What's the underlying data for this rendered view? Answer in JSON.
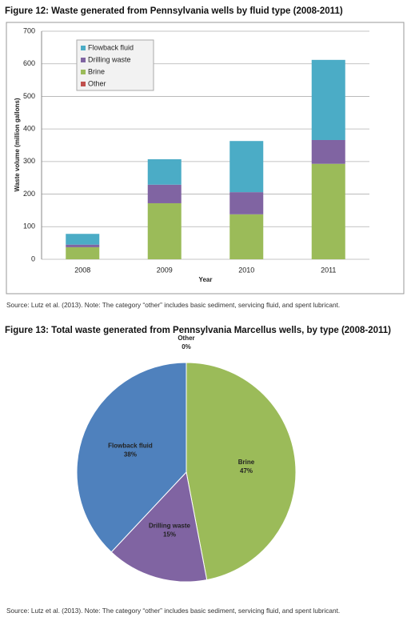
{
  "chart_data": [
    {
      "type": "stacked-bar",
      "title": "Figure 12: Waste generated from Pennsylvania wells by fluid type (2008-2011)",
      "xlabel": "Year",
      "ylabel": "Waste volume (million gallons)",
      "categories": [
        "2008",
        "2009",
        "2010",
        "2011"
      ],
      "series": [
        {
          "name": "Flowback fluid",
          "color": "#4bacc6",
          "values": [
            33,
            78,
            157,
            246
          ]
        },
        {
          "name": "Drilling waste",
          "color": "#8064a2",
          "values": [
            8,
            57,
            68,
            73
          ]
        },
        {
          "name": "Brine",
          "color": "#9bbb59",
          "values": [
            37,
            172,
            138,
            293
          ]
        },
        {
          "name": "Other",
          "color": "#c0504d",
          "values": [
            0,
            0,
            0,
            0
          ]
        }
      ],
      "ylim": [
        0,
        700
      ],
      "yticks": [
        0,
        100,
        200,
        300,
        400,
        500,
        600,
        700
      ],
      "grid": true,
      "legend": "top-left",
      "note": "Source: Lutz et al. (2013). Note: The category “other” includes basic sediment, servicing fluid, and spent lubricant."
    },
    {
      "type": "pie",
      "title": "Figure 13: Total waste generated from Pennsylvania Marcellus wells, by type (2008-2011)",
      "categories": [
        "Other",
        "Brine",
        "Drilling waste",
        "Flowback fluid"
      ],
      "values": [
        0,
        47,
        15,
        38
      ],
      "value_labels": [
        "0%",
        "47%",
        "15%",
        "38%"
      ],
      "colors": [
        "#c0504d",
        "#9bbb59",
        "#8064a2",
        "#4f81bd"
      ],
      "note": "Source: Lutz et al. (2013). Note: The category “other” includes basic sediment, servicing fluid, and spent lubricant."
    }
  ]
}
